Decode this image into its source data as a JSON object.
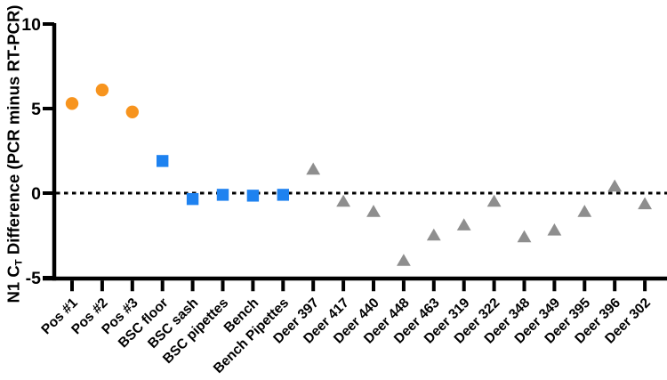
{
  "figure": {
    "background": "#ffffff"
  },
  "chart_data": {
    "type": "scatter",
    "title": "",
    "ylabel": "N1 CT Difference (PCR minus RT-PCR)",
    "ylabel_parts": {
      "prefix": "N1 C",
      "subscript": "T",
      "suffix": " Difference (PCR minus RT-PCR)"
    },
    "xlabel": "",
    "ylim": [
      -5,
      10
    ],
    "yticks": [
      10,
      5,
      0,
      -5
    ],
    "grid": false,
    "legend": "none",
    "axis_color": "#000000",
    "reference_line": {
      "y": 0,
      "style": "dotted",
      "color": "#000000"
    },
    "categories": [
      "Pos #1",
      "Pos #2",
      "Pos #3",
      "BSC floor",
      "BSC sash",
      "BSC pipettes",
      "Bench",
      "Bench Pipettes",
      "Deer 397",
      "Deer 417",
      "Deer 440",
      "Deer 448",
      "Deer 463",
      "Deer 319",
      "Deer 322",
      "Deer 348",
      "Deer 349",
      "Deer 395",
      "Deer 396",
      "Deer 302"
    ],
    "series": [
      {
        "name": "positive-controls",
        "marker": "circle",
        "color": "#F7941E",
        "points": [
          {
            "category": "Pos #1",
            "value": 5.3
          },
          {
            "category": "Pos #2",
            "value": 6.1
          },
          {
            "category": "Pos #3",
            "value": 4.8
          }
        ]
      },
      {
        "name": "surface-samples",
        "marker": "square",
        "color": "#1E82F0",
        "points": [
          {
            "category": "BSC floor",
            "value": 1.9
          },
          {
            "category": "BSC sash",
            "value": -0.35
          },
          {
            "category": "BSC pipettes",
            "value": -0.1
          },
          {
            "category": "Bench",
            "value": -0.15
          },
          {
            "category": "Bench Pipettes",
            "value": -0.1
          }
        ]
      },
      {
        "name": "deer-samples",
        "marker": "triangle",
        "color": "#8E8E8E",
        "points": [
          {
            "category": "Deer 397",
            "value": 1.4
          },
          {
            "category": "Deer 417",
            "value": -0.5
          },
          {
            "category": "Deer 440",
            "value": -1.1
          },
          {
            "category": "Deer 448",
            "value": -4.0
          },
          {
            "category": "Deer 463",
            "value": -2.5
          },
          {
            "category": "Deer 319",
            "value": -1.9
          },
          {
            "category": "Deer 322",
            "value": -0.5
          },
          {
            "category": "Deer 348",
            "value": -2.6
          },
          {
            "category": "Deer 349",
            "value": -2.2
          },
          {
            "category": "Deer 395",
            "value": -1.1
          },
          {
            "category": "Deer 396",
            "value": 0.4
          },
          {
            "category": "Deer 302",
            "value": -0.65
          }
        ]
      }
    ]
  }
}
